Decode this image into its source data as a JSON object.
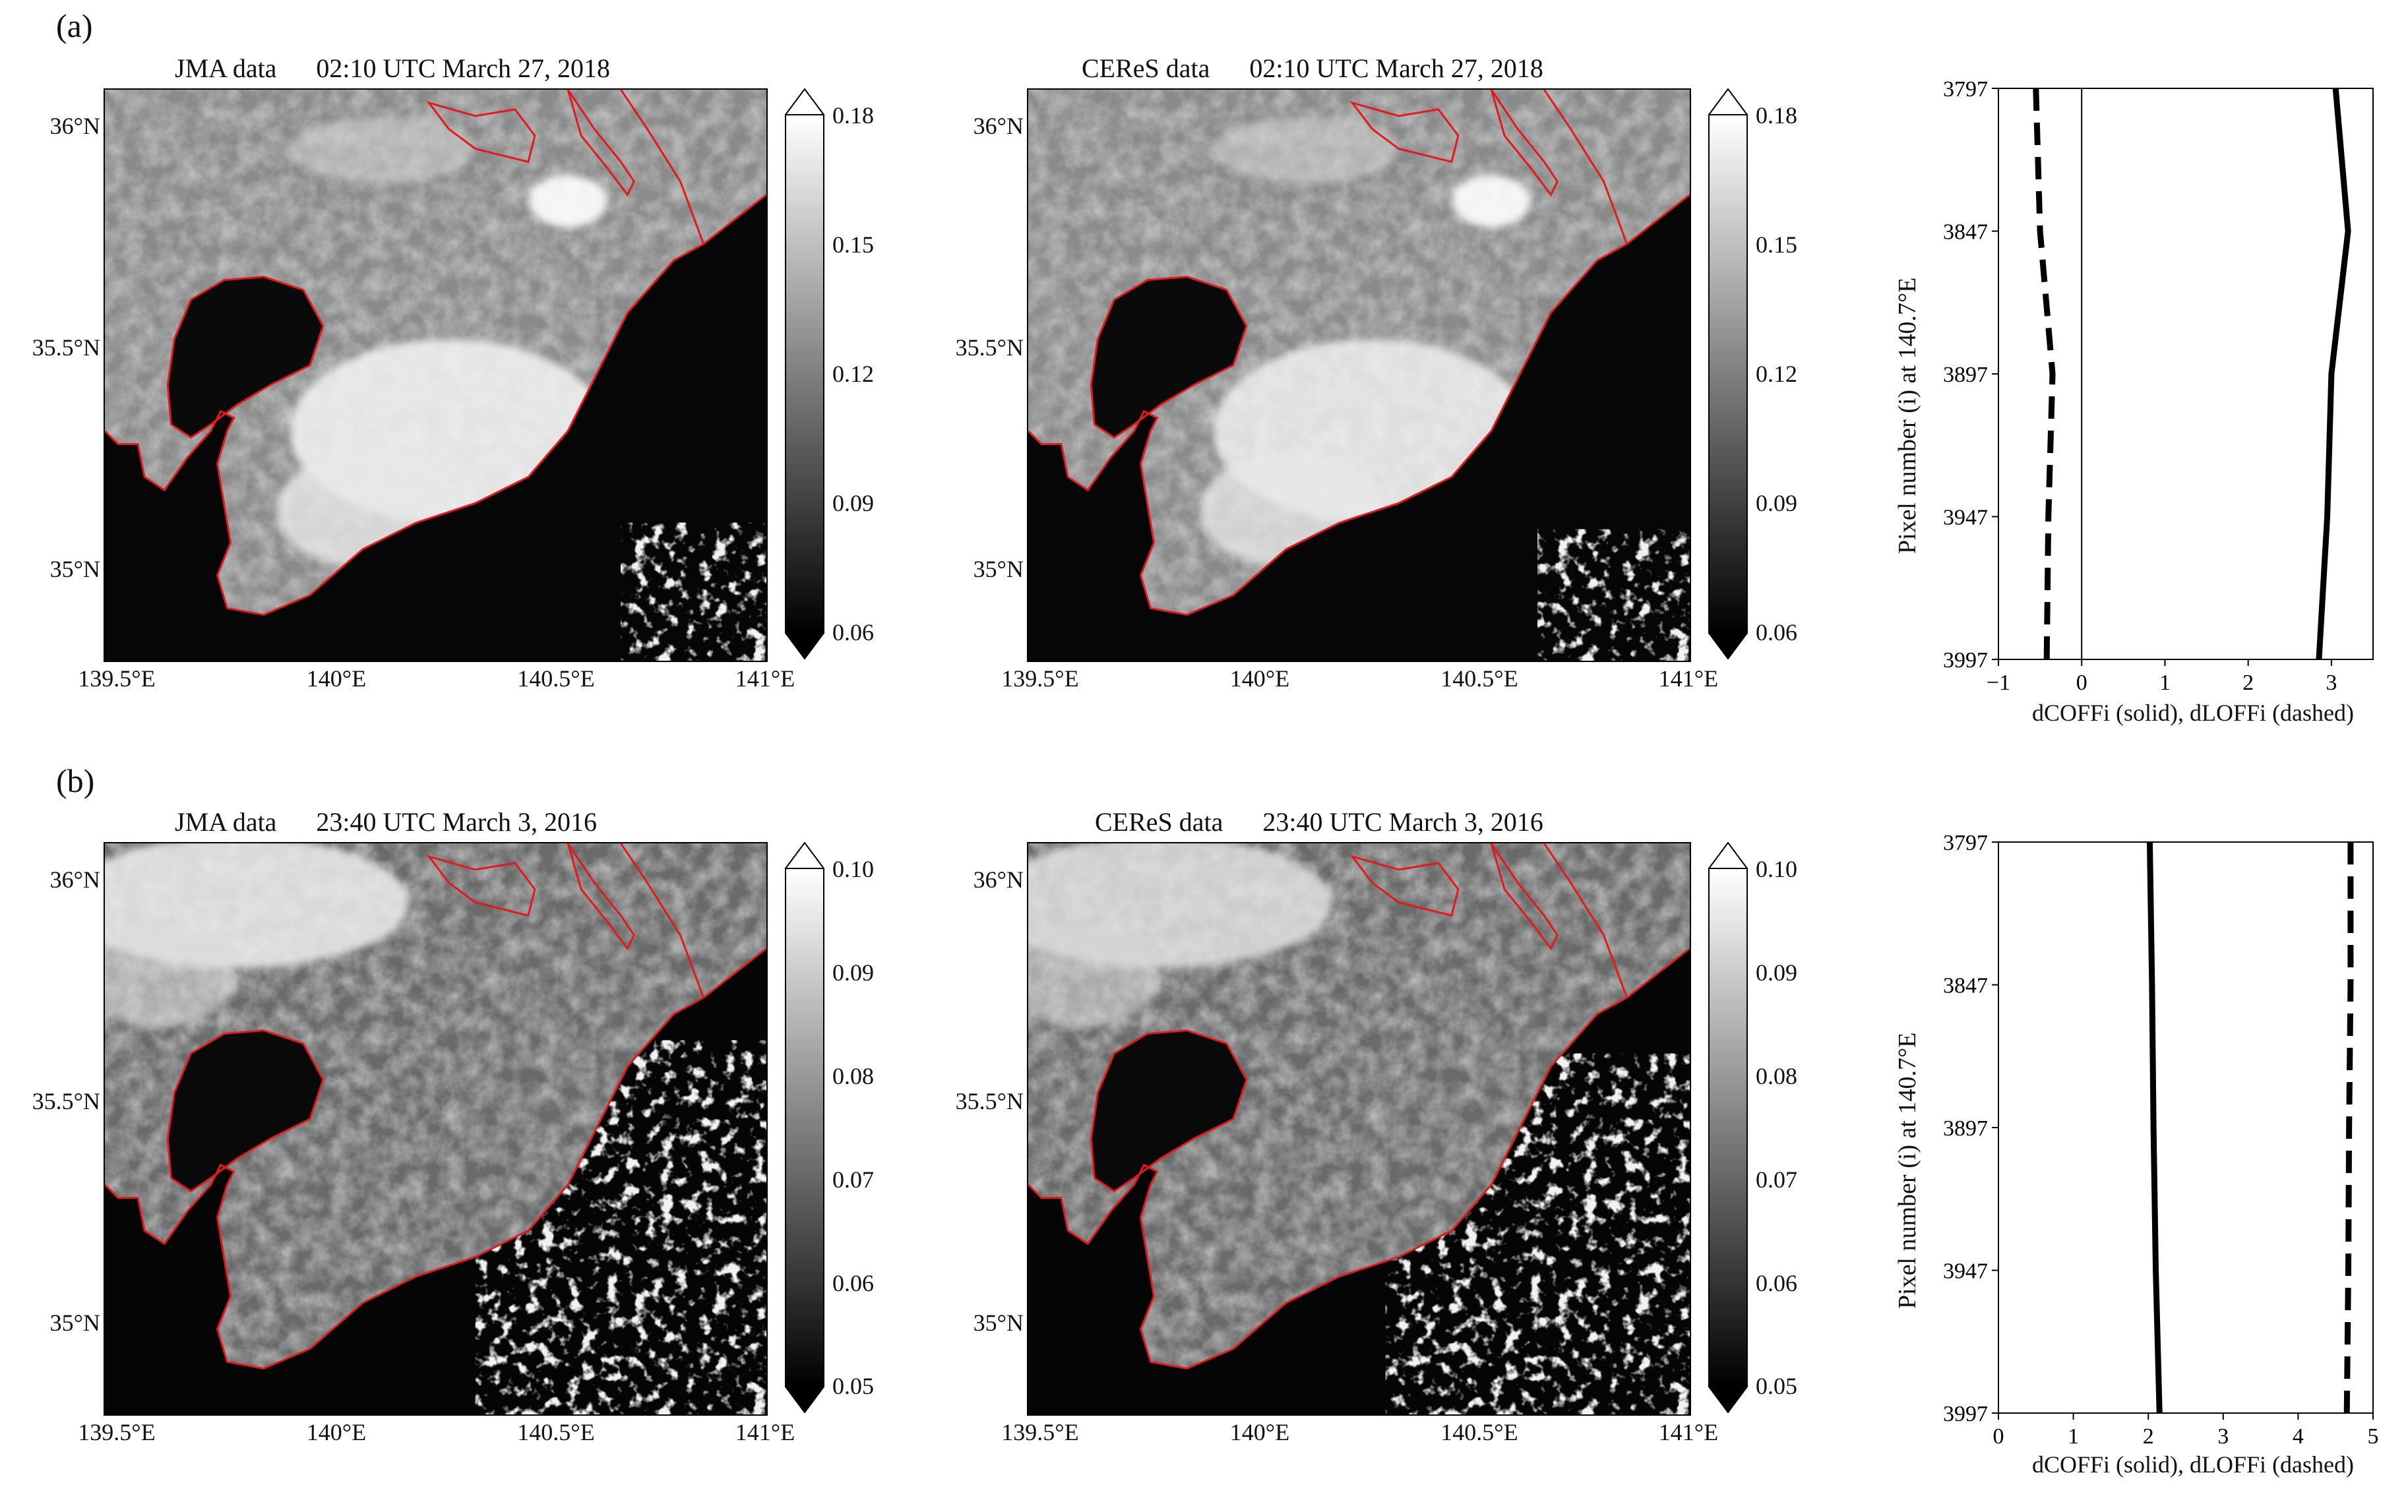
{
  "panels": [
    {
      "label": "(a)",
      "jma_title": "JMA data      02:10 UTC March 27, 2018",
      "ceres_title": "CEReS data      02:10 UTC March 27, 2018",
      "lat_ticks": [
        "36°N",
        "35.5°N",
        "35°N"
      ],
      "lon_ticks": [
        "139.5°E",
        "140°E",
        "140.5°E",
        "141°E"
      ],
      "colorbar_ticks": [
        "0.18",
        "0.15",
        "0.12",
        "0.09",
        "0.06"
      ],
      "colorbar_range": [
        0.06,
        0.18
      ],
      "colormap": "gray",
      "coastline_color": "#e31a1c"
    },
    {
      "label": "(b)",
      "jma_title": "JMA data      23:40 UTC March 3, 2016",
      "ceres_title": "CEReS data      23:40 UTC March 3, 2016",
      "lat_ticks": [
        "36°N",
        "35.5°N",
        "35°N"
      ],
      "lon_ticks": [
        "139.5°E",
        "140°E",
        "140.5°E",
        "141°E"
      ],
      "colorbar_ticks": [
        "0.10",
        "0.09",
        "0.08",
        "0.07",
        "0.06",
        "0.05"
      ],
      "colorbar_range": [
        0.05,
        0.1
      ],
      "colormap": "gray",
      "coastline_color": "#e31a1c"
    }
  ],
  "chart_data": [
    {
      "type": "line",
      "panel": "(a)",
      "ylabel": "Pixel number (i) at 140.7°E",
      "xlabel": "dCOFFi (solid),  dLOFFi (dashed)",
      "xlim": [
        -1,
        3.5
      ],
      "ylim": [
        3797,
        3997
      ],
      "y_inverted": true,
      "xticks": [
        "−1",
        "0",
        "1",
        "2",
        "3"
      ],
      "xtick_values": [
        -1,
        0,
        1,
        2,
        3
      ],
      "yticks": [
        "3797",
        "3847",
        "3897",
        "3947",
        "3997"
      ],
      "ytick_values": [
        3797,
        3847,
        3897,
        3947,
        3997
      ],
      "zero_line": 0,
      "series": [
        {
          "style": "solid",
          "points": [
            [
              3.05,
              3797
            ],
            [
              3.2,
              3847
            ],
            [
              3.0,
              3897
            ],
            [
              2.95,
              3947
            ],
            [
              2.85,
              3997
            ]
          ]
        },
        {
          "style": "dashed",
          "points": [
            [
              -0.55,
              3797
            ],
            [
              -0.5,
              3847
            ],
            [
              -0.35,
              3897
            ],
            [
              -0.4,
              3947
            ],
            [
              -0.42,
              3997
            ]
          ]
        }
      ]
    },
    {
      "type": "line",
      "panel": "(b)",
      "ylabel": "Pixel number (i) at 140.7°E",
      "xlabel": "dCOFFi (solid),  dLOFFi (dashed)",
      "xlim": [
        0,
        5
      ],
      "ylim": [
        3797,
        3997
      ],
      "y_inverted": true,
      "xticks": [
        "0",
        "1",
        "2",
        "3",
        "4",
        "5"
      ],
      "xtick_values": [
        0,
        1,
        2,
        3,
        4,
        5
      ],
      "yticks": [
        "3797",
        "3847",
        "3897",
        "3947",
        "3997"
      ],
      "ytick_values": [
        3797,
        3847,
        3897,
        3947,
        3997
      ],
      "series": [
        {
          "style": "solid",
          "points": [
            [
              2.02,
              3797
            ],
            [
              2.05,
              3847
            ],
            [
              2.07,
              3897
            ],
            [
              2.1,
              3947
            ],
            [
              2.15,
              3997
            ]
          ]
        },
        {
          "style": "dashed",
          "points": [
            [
              4.7,
              3797
            ],
            [
              4.7,
              3847
            ],
            [
              4.68,
              3897
            ],
            [
              4.67,
              3947
            ],
            [
              4.65,
              3997
            ]
          ]
        }
      ]
    }
  ]
}
